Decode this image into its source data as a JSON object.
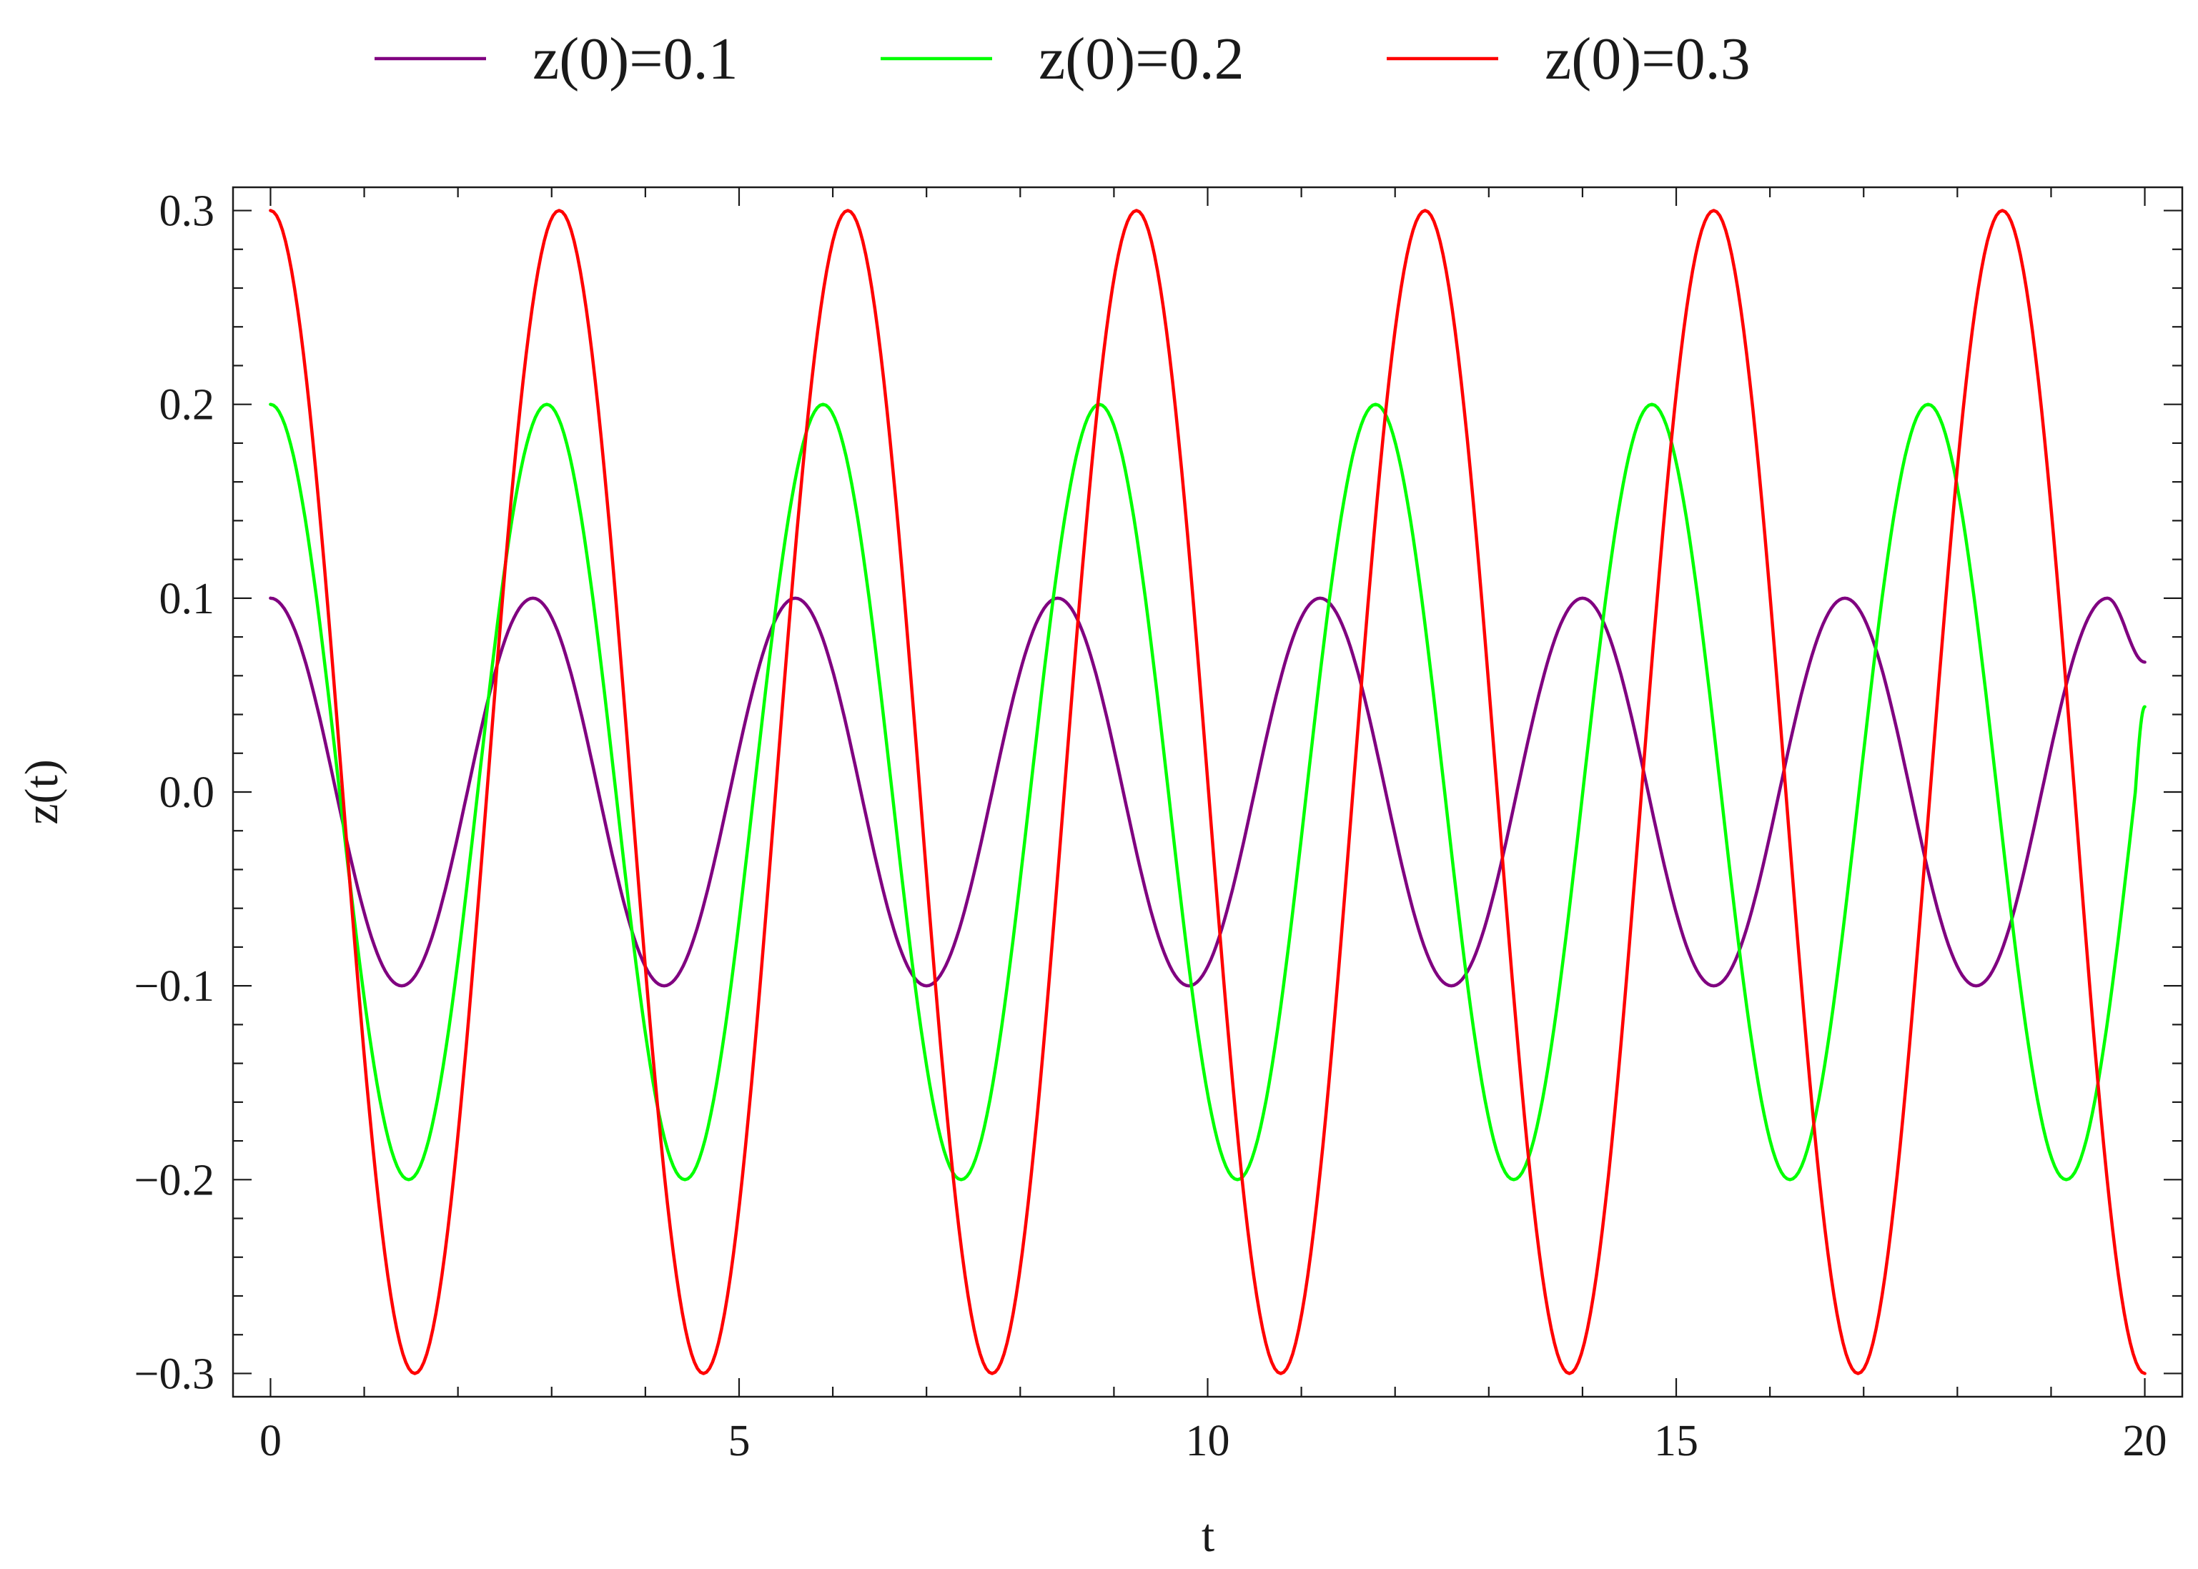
{
  "chart_data": {
    "type": "line",
    "title": "",
    "xlabel": "t",
    "ylabel": "z(t)",
    "xlim": [
      -0.4,
      20.4
    ],
    "ylim": [
      -0.312,
      0.312
    ],
    "x_ticks": [
      0,
      5,
      10,
      15,
      20
    ],
    "x_tick_labels": [
      "0",
      "5",
      "10",
      "15",
      "20"
    ],
    "x_minor_step": 1,
    "y_ticks": [
      0.3,
      0.2,
      0.1,
      0.0,
      -0.1,
      -0.2,
      -0.3
    ],
    "y_tick_labels": [
      "0.3",
      "0.2",
      "0.1",
      "0.0",
      "−0.1",
      "−0.2",
      "−0.3"
    ],
    "y_minor_step": 0.02,
    "grid": false,
    "legend_position": "top",
    "series": [
      {
        "name": "z(0)=0.1",
        "color": "#800080",
        "x": [
          0,
          0.7,
          1.4,
          2.1,
          2.8,
          3.5,
          4.2,
          4.9,
          5.6,
          6.3,
          7.0,
          7.7,
          8.4,
          9.1,
          9.8,
          10.5,
          11.2,
          11.9,
          12.6,
          13.3,
          14.0,
          14.7,
          15.4,
          16.1,
          16.8,
          17.5,
          18.2,
          18.9,
          19.6,
          20.0
        ],
        "values": [
          0.1,
          0.0,
          -0.1,
          0.0,
          0.1,
          0.0,
          -0.1,
          0.0,
          0.1,
          0.0,
          -0.1,
          0.0,
          0.1,
          0.0,
          -0.1,
          0.0,
          0.1,
          0.0,
          -0.1,
          0.0,
          0.1,
          0.0,
          -0.1,
          0.0,
          0.1,
          0.0,
          -0.1,
          0.0,
          0.1,
          0.067
        ]
      },
      {
        "name": "z(0)=0.2",
        "color": "#00ff00",
        "x": [
          0,
          0.737,
          1.474,
          2.211,
          2.948,
          3.685,
          4.422,
          5.159,
          5.896,
          6.633,
          7.37,
          8.107,
          8.844,
          9.581,
          10.318,
          11.055,
          11.792,
          12.529,
          13.266,
          14.003,
          14.74,
          15.477,
          16.214,
          16.951,
          17.688,
          18.425,
          19.162,
          19.899,
          20.0
        ],
        "values": [
          0.2,
          0.0,
          -0.2,
          0.0,
          0.2,
          0.0,
          -0.2,
          0.0,
          0.2,
          0.0,
          -0.2,
          0.0,
          0.2,
          0.0,
          -0.2,
          0.0,
          0.2,
          0.0,
          -0.2,
          0.0,
          0.2,
          0.0,
          -0.2,
          0.0,
          0.2,
          0.0,
          -0.2,
          0.0,
          0.044
        ]
      },
      {
        "name": "z(0)=0.3",
        "color": "#ff0000",
        "x": [
          0,
          0.77,
          1.54,
          2.31,
          3.08,
          3.85,
          4.62,
          5.39,
          6.16,
          6.93,
          7.7,
          8.47,
          9.24,
          10.01,
          10.78,
          11.55,
          12.32,
          13.09,
          13.86,
          14.63,
          15.4,
          16.17,
          16.94,
          17.71,
          18.48,
          19.25,
          20.0
        ],
        "values": [
          0.3,
          0.0,
          -0.3,
          0.0,
          0.3,
          0.0,
          -0.3,
          0.0,
          0.3,
          0.0,
          -0.3,
          0.0,
          0.3,
          0.0,
          -0.3,
          0.0,
          0.3,
          0.0,
          -0.3,
          0.0,
          0.3,
          0.0,
          -0.3,
          0.0,
          0.3,
          0.0,
          -0.3
        ]
      }
    ]
  }
}
